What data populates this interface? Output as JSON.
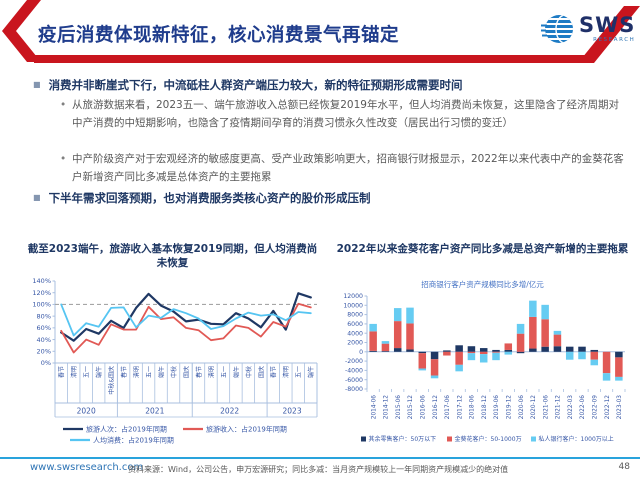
{
  "header": {
    "title": "疫后消费体现新特征，核心消费景气再锚定",
    "logo": {
      "text": "SWS",
      "subtext": "RESEARCH",
      "icon": "sws-globe-icon"
    }
  },
  "colors": {
    "accent_red": "#C9151E",
    "title_blue": "#1F3C8C",
    "heading_navy": "#1F3864",
    "body_gray": "#595959",
    "footer_line_blue": "#29A3DC",
    "link_blue": "#2E74B5",
    "axis_blue": "#3757A6",
    "series_navy": "#1F3864",
    "series_red": "#E15955",
    "series_sky": "#56C5F2"
  },
  "bullets": [
    {
      "level": 1,
      "text": "消费并非断崖式下行，中流砥柱人群资产端压力较大，新的特征预期形成需要时间"
    },
    {
      "level": 2,
      "text": "从旅游数据来看，2023五一、端午旅游收入总额已经恢复2019年水平，但人均消费尚未恢复，这里隐含了经济周期对中产消费的中短期影响，也隐含了疫情期间孕育的消费习惯永久性改变（居民出行习惯的变迁）"
    },
    {
      "level": 2,
      "text": "中产阶级资产对于宏观经济的敏感度更高、受产业政策影响更大，招商银行财报显示，2022年以来代表中产的金葵花客户新增资产同比多减是总体资产的主要拖累"
    },
    {
      "level": 1,
      "text": "下半年需求回落预期，也对消费服务类核心资产的股价形成压制"
    }
  ],
  "chart_data": [
    {
      "type": "line",
      "title": "截至2023端午，旅游收入基本恢复2019同期，但人均消费尚未恢复",
      "categories": [
        "春节",
        "清明",
        "五一",
        "端午",
        "中秋&国庆",
        "春节",
        "清明",
        "五一",
        "端午",
        "中秋",
        "国庆",
        "春节",
        "清明",
        "五一",
        "端午",
        "中秋",
        "国庆",
        "春节",
        "清明",
        "五一",
        "端午"
      ],
      "year_groups": [
        {
          "label": "2020",
          "span": 5
        },
        {
          "label": "2021",
          "span": 6
        },
        {
          "label": "2022",
          "span": 6
        },
        {
          "label": "2023",
          "span": 4
        }
      ],
      "series": [
        {
          "name": "旅游人次：占2019年同期",
          "color": "#1F3864",
          "values": [
            52,
            38,
            58,
            50,
            72,
            60,
            94,
            118,
            98,
            88,
            71,
            74,
            67,
            66,
            85,
            76,
            61,
            89,
            57,
            119,
            112
          ]
        },
        {
          "name": "旅游收入：占2019年同期",
          "color": "#E15955",
          "values": [
            55,
            18,
            40,
            31,
            66,
            57,
            57,
            96,
            75,
            78,
            60,
            56,
            39,
            42,
            64,
            60,
            45,
            70,
            62,
            101,
            95
          ]
        },
        {
          "name": "人均消费：占2019年同期",
          "color": "#56C5F2",
          "values": [
            100,
            47,
            68,
            62,
            94,
            95,
            61,
            81,
            77,
            92,
            85,
            76,
            58,
            63,
            76,
            86,
            81,
            83,
            73,
            87,
            85
          ]
        }
      ],
      "ylim": [
        0,
        140
      ],
      "ytick_step": 20,
      "ytick_unit": "%",
      "reference_line": 100,
      "grid": false,
      "legend_position": "bottom"
    },
    {
      "type": "bar",
      "stacked": true,
      "title": "2022年以来金葵花客户资产同比多减是总资产新增的主要拖累",
      "subtitle": "招商银行客户资产规模同比多增/亿元",
      "categories": [
        "2014-06",
        "2014-12",
        "2015-06",
        "2015-12",
        "2016-06",
        "2016-12",
        "2017-06",
        "2017-12",
        "2018-06",
        "2018-12",
        "2019-06",
        "2019-12",
        "2020-06",
        "2020-12",
        "2021-06",
        "2021-12",
        "2022-03",
        "2022-06",
        "2022-09",
        "2022-12",
        "2023-03"
      ],
      "series": [
        {
          "name": "其余零售客户：50万以下",
          "color": "#1F3864",
          "values": [
            200,
            150,
            800,
            500,
            -300,
            -1600,
            300,
            1400,
            1200,
            800,
            400,
            400,
            -300,
            700,
            1100,
            1200,
            1100,
            1100,
            400,
            0,
            -1200
          ]
        },
        {
          "name": "金葵花客户：50-1000万",
          "color": "#E15955",
          "values": [
            4200,
            1600,
            5800,
            5600,
            -3300,
            -3500,
            -800,
            -2800,
            -300,
            -500,
            -200,
            1400,
            3900,
            6800,
            5900,
            2500,
            0,
            0,
            -1700,
            -4600,
            -4200
          ]
        },
        {
          "name": "私人银行客户：1000万以上",
          "color": "#66CCF2",
          "values": [
            1600,
            550,
            2800,
            3400,
            -400,
            -600,
            0,
            -1400,
            -1500,
            -1800,
            -1600,
            -600,
            2100,
            3500,
            3100,
            800,
            -1700,
            -1600,
            -1200,
            -1600,
            -800
          ]
        }
      ],
      "ylim": [
        -8000,
        12000
      ],
      "ytick_step": 2000,
      "grid": false,
      "legend_position": "bottom"
    }
  ],
  "footer": {
    "url": "www.swsresearch.com",
    "source": "资料来源：Wind，公司公告，申万宏源研究；同比多减：当月资产规模较上一年同期资产规模减少的绝对值",
    "page": "48"
  }
}
